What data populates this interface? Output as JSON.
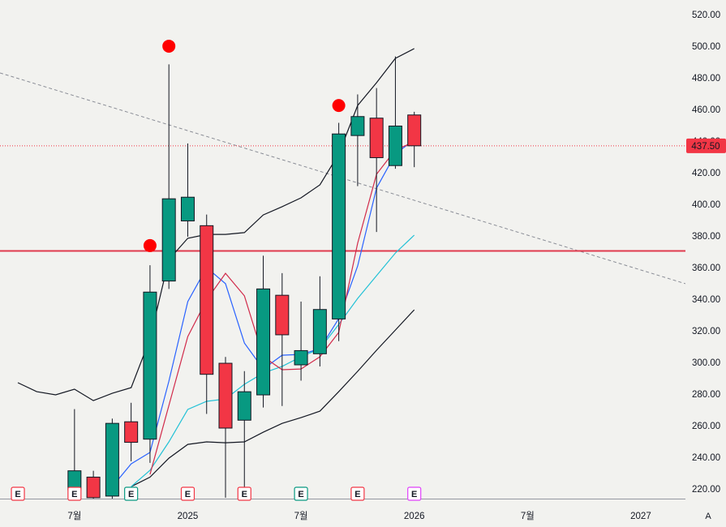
{
  "chart_data": {
    "type": "candlestick",
    "categories": [
      null,
      null,
      null,
      "7월",
      null,
      null,
      null,
      null,
      null,
      "2025",
      null,
      null,
      null,
      null,
      null,
      "7월",
      null,
      null,
      null,
      null,
      null,
      "2026",
      null,
      null,
      null,
      null,
      null,
      "7월",
      null,
      null,
      null,
      null,
      null,
      "2027",
      null
    ],
    "open": [
      null,
      null,
      null,
      220,
      228,
      216,
      263,
      252,
      352,
      390,
      387,
      300,
      264,
      280,
      343,
      299,
      306,
      328,
      444,
      455,
      425,
      457,
      null,
      null,
      null,
      null,
      null,
      null,
      null,
      null,
      null,
      null,
      null,
      null,
      null
    ],
    "high": [
      null,
      null,
      null,
      271,
      232,
      265,
      275,
      362,
      489,
      439,
      394,
      304,
      295,
      368,
      357,
      339,
      355,
      452,
      470,
      474,
      494,
      459,
      null,
      null,
      null,
      null,
      null,
      null,
      null,
      null,
      null,
      null,
      null,
      null,
      null
    ],
    "low": [
      null,
      null,
      null,
      214,
      212,
      212,
      238,
      237,
      347,
      380,
      268,
      215,
      215,
      272,
      273,
      289,
      298,
      314,
      412,
      383,
      423,
      424,
      null,
      null,
      null,
      null,
      null,
      null,
      null,
      null,
      null,
      null,
      null,
      null,
      null
    ],
    "close": [
      null,
      null,
      null,
      232,
      215,
      262,
      250,
      345,
      404,
      405,
      293,
      259,
      282,
      347,
      318,
      308,
      334,
      445,
      456,
      430,
      450,
      437.5,
      null,
      null,
      null,
      null,
      null,
      null,
      null,
      null,
      null,
      null,
      null,
      null,
      null
    ],
    "up_color": "#089981",
    "down_color": "#f23645",
    "lines": [
      {
        "color": "#131722",
        "values": [
          287.7,
          282,
          280,
          283.6,
          276.4,
          281,
          284.6,
          315.4,
          365.6,
          379,
          381.5,
          381.5,
          382.6,
          393.8,
          399,
          404.6,
          412.8,
          432.3,
          463,
          477.4,
          492.8,
          499,
          null,
          null,
          null,
          null,
          null,
          null,
          null,
          null,
          null,
          null,
          null,
          null,
          null
        ]
      },
      {
        "color": "#131722",
        "values": [
          null,
          null,
          null,
          null,
          null,
          null,
          222,
          228,
          240,
          248.7,
          250.3,
          249.7,
          250.3,
          256.4,
          262,
          265.6,
          269.7,
          282,
          294.9,
          308.2,
          321,
          333.8,
          null,
          null,
          null,
          null,
          null,
          null,
          null,
          null,
          null,
          null,
          null,
          null,
          null
        ]
      },
      {
        "color": "#2962ff",
        "values": [
          null,
          null,
          null,
          null,
          null,
          222,
          236.4,
          243.6,
          288.7,
          339,
          360.5,
          350.3,
          312.8,
          296.4,
          305.1,
          305.6,
          309.2,
          328.2,
          361.5,
          410.8,
          432.3,
          441.5,
          null,
          null,
          null,
          null,
          null,
          null,
          null,
          null,
          null,
          null,
          null,
          null,
          null
        ]
      },
      {
        "color": "#22c1d6",
        "values": [
          null,
          null,
          null,
          null,
          null,
          null,
          222,
          232.3,
          250.3,
          270.8,
          275.9,
          277.4,
          286.7,
          293.8,
          298,
          304.1,
          309.2,
          324.6,
          341,
          355.4,
          369.7,
          381,
          null,
          null,
          null,
          null,
          null,
          null,
          null,
          null,
          null,
          null,
          null,
          null,
          null
        ]
      },
      {
        "color": "#d12a4a",
        "values": [
          null,
          null,
          null,
          null,
          null,
          null,
          null,
          229.7,
          273.3,
          316.9,
          340,
          356.9,
          342.6,
          304.1,
          295.9,
          296.4,
          304.1,
          319.5,
          375.9,
          419.5,
          434.9,
          440,
          null,
          null,
          null,
          null,
          null,
          null,
          null,
          null,
          null,
          null,
          null,
          null,
          null
        ]
      }
    ],
    "signal_points": [
      null,
      null,
      null,
      null,
      null,
      null,
      null,
      374.4,
      500.5,
      null,
      null,
      null,
      null,
      null,
      null,
      null,
      null,
      463,
      null,
      null,
      null,
      null,
      null,
      null,
      null,
      null,
      null,
      null,
      null,
      null,
      null,
      null,
      null,
      null,
      null
    ],
    "signal_color": "#ff0000",
    "hline": 371,
    "hline_color": "#e03a4e",
    "trendline": [
      483.6,
      350.3
    ],
    "last_price": {
      "value": 437.5,
      "label": "437.50"
    },
    "event_labels": [
      "E",
      null,
      null,
      "E",
      null,
      null,
      "E",
      null,
      null,
      "E",
      null,
      null,
      "E",
      null,
      null,
      "E",
      null,
      null,
      "E",
      null,
      null,
      "E",
      null,
      null,
      null,
      null,
      null,
      null,
      null,
      null,
      null,
      null,
      null,
      null,
      null
    ],
    "event_colors": [
      "#f23645",
      null,
      null,
      "#f23645",
      null,
      null,
      "#089981",
      null,
      null,
      "#f23645",
      null,
      null,
      "#f23645",
      null,
      null,
      "#089981",
      null,
      null,
      "#f23645",
      null,
      null,
      "#e040fb",
      null,
      null,
      null,
      null,
      null,
      null,
      null,
      null,
      null,
      null,
      null,
      null,
      null
    ],
    "ylim": [
      214.4,
      529.7
    ],
    "yticks": [
      {
        "value": 220,
        "label": "220.00"
      },
      {
        "value": 240,
        "label": "240.00"
      },
      {
        "value": 260,
        "label": "260.00"
      },
      {
        "value": 280,
        "label": "280.00"
      },
      {
        "value": 300,
        "label": "300.00"
      },
      {
        "value": 320,
        "label": "320.00"
      },
      {
        "value": 340,
        "label": "340.00"
      },
      {
        "value": 360,
        "label": "360.00"
      },
      {
        "value": 380,
        "label": "380.00"
      },
      {
        "value": 400,
        "label": "400.00"
      },
      {
        "value": 420,
        "label": "420.00"
      },
      {
        "value": 440,
        "label": "440.00"
      },
      {
        "value": 460,
        "label": "460.00"
      },
      {
        "value": 480,
        "label": "480.00"
      },
      {
        "value": 500,
        "label": "500.00"
      },
      {
        "value": 520,
        "label": "520.00"
      }
    ],
    "grid": false,
    "auto_button": "A"
  }
}
